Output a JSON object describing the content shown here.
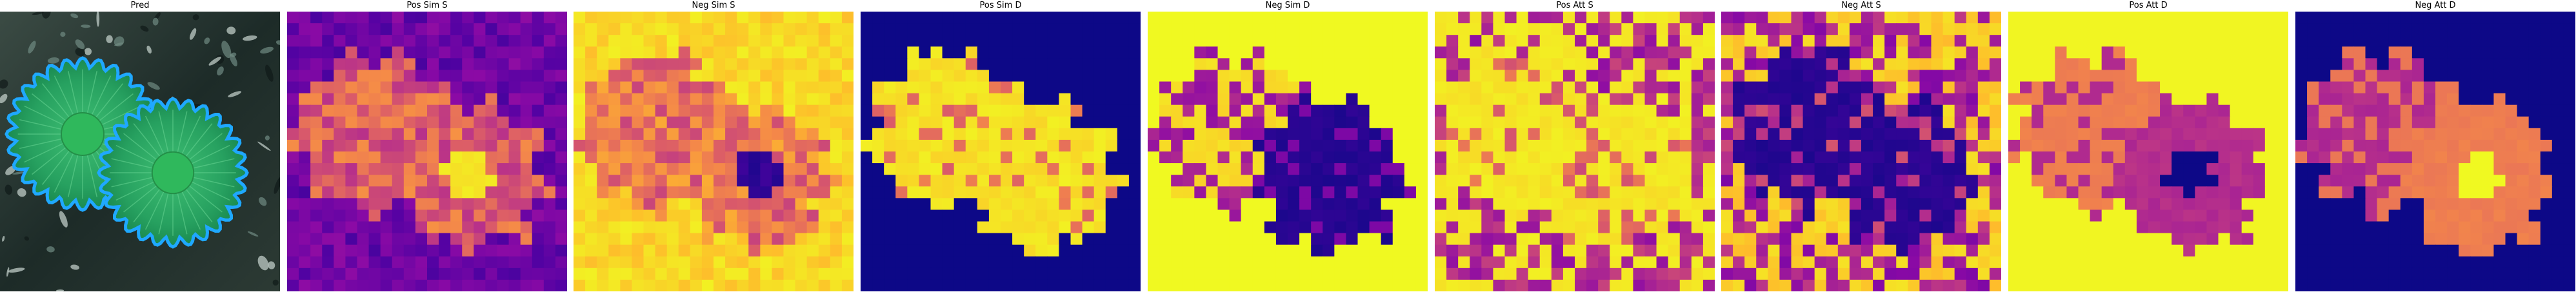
{
  "panels": [
    {
      "title": "Pred",
      "kind": "pred",
      "name": "pred-panel"
    },
    {
      "title": "Pos Sim S",
      "kind": "heat",
      "variant": "pos_sim_s",
      "name": "pos-sim-s-panel"
    },
    {
      "title": "Neg Sim S",
      "kind": "heat",
      "variant": "neg_sim_s",
      "name": "neg-sim-s-panel"
    },
    {
      "title": "Pos Sim D",
      "kind": "heat",
      "variant": "pos_sim_d",
      "name": "pos-sim-d-panel"
    },
    {
      "title": "Neg Sim D",
      "kind": "heat",
      "variant": "neg_sim_d",
      "name": "neg-sim-d-panel"
    },
    {
      "title": "Pos Att S",
      "kind": "heat",
      "variant": "pos_att_s",
      "name": "pos-att-s-panel"
    },
    {
      "title": "Neg Att S",
      "kind": "heat",
      "variant": "neg_att_s",
      "name": "neg-att-s-panel"
    },
    {
      "title": "Pos Att D",
      "kind": "heat",
      "variant": "pos_att_d",
      "name": "pos-att-d-panel"
    },
    {
      "title": "Neg Att D",
      "kind": "heat",
      "variant": "neg_att_d",
      "name": "neg-att-d-panel"
    }
  ],
  "colormap": "plasma"
}
